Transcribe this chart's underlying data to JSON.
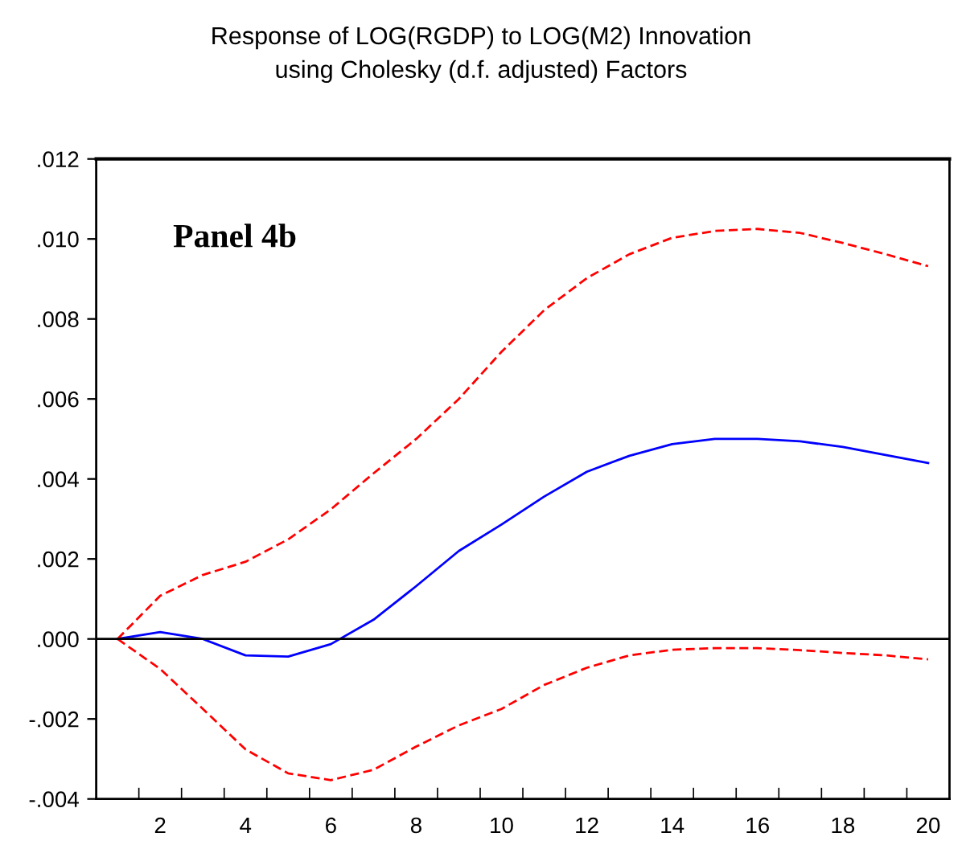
{
  "chart_data": {
    "type": "line",
    "title": "Response of LOG(RGDP) to LOG(M2) Innovation\nusing Cholesky (d.f. adjusted) Factors",
    "annotations": [
      "Panel 4b"
    ],
    "x": [
      1,
      2,
      3,
      4,
      5,
      6,
      7,
      8,
      9,
      10,
      11,
      12,
      13,
      14,
      15,
      16,
      17,
      18,
      19,
      20
    ],
    "series": [
      {
        "color": "#0000ff",
        "line_style": "solid",
        "values": [
          0,
          0.00017,
          0,
          -0.00041,
          -0.00044,
          -0.00013,
          0.00048,
          0.00132,
          0.0022,
          0.00286,
          0.00356,
          0.00418,
          0.00458,
          0.00487,
          0.005,
          0.005,
          0.00494,
          0.0048,
          0.0046,
          0.0044
        ]
      },
      {
        "color": "#ff0000",
        "line_style": "dashed",
        "values": [
          0,
          0.00108,
          0.0016,
          0.00193,
          0.00249,
          0.00324,
          0.00414,
          0.005,
          0.006,
          0.00718,
          0.00822,
          0.00902,
          0.00962,
          0.01003,
          0.0102,
          0.01025,
          0.01015,
          0.0099,
          0.00962,
          0.00932
        ]
      },
      {
        "color": "#ff0000",
        "line_style": "dashed",
        "values": [
          0,
          -0.00075,
          -0.00175,
          -0.00276,
          -0.00336,
          -0.00353,
          -0.00327,
          -0.00269,
          -0.00216,
          -0.00175,
          -0.00115,
          -0.00072,
          -0.00041,
          -0.00027,
          -0.00023,
          -0.00023,
          -0.00028,
          -0.00035,
          -0.00041,
          -0.00051
        ]
      }
    ],
    "ref_lines": [
      {
        "axis": "y",
        "value": 0,
        "color": "#000000"
      }
    ],
    "xlim": [
      0.5,
      20.5
    ],
    "xticks": [
      {
        "value": 1.5,
        "label": null
      },
      {
        "value": 2,
        "label": "2"
      },
      {
        "value": 2.5,
        "label": null
      },
      {
        "value": 3.5,
        "label": null
      },
      {
        "value": 4,
        "label": "4"
      },
      {
        "value": 4.5,
        "label": null
      },
      {
        "value": 5.5,
        "label": null
      },
      {
        "value": 6,
        "label": "6"
      },
      {
        "value": 6.5,
        "label": null
      },
      {
        "value": 7.5,
        "label": null
      },
      {
        "value": 8,
        "label": "8"
      },
      {
        "value": 8.5,
        "label": null
      },
      {
        "value": 9.5,
        "label": null
      },
      {
        "value": 10,
        "label": "10"
      },
      {
        "value": 10.5,
        "label": null
      },
      {
        "value": 11.5,
        "label": null
      },
      {
        "value": 12,
        "label": "12"
      },
      {
        "value": 12.5,
        "label": null
      },
      {
        "value": 13.5,
        "label": null
      },
      {
        "value": 14,
        "label": "14"
      },
      {
        "value": 14.5,
        "label": null
      },
      {
        "value": 15.5,
        "label": null
      },
      {
        "value": 16,
        "label": "16"
      },
      {
        "value": 16.5,
        "label": null
      },
      {
        "value": 17.5,
        "label": null
      },
      {
        "value": 18,
        "label": "18"
      },
      {
        "value": 18.5,
        "label": null
      },
      {
        "value": 19.5,
        "label": null
      },
      {
        "value": 20,
        "label": "20"
      }
    ],
    "ylim": [
      -0.004,
      0.012
    ],
    "yticks": [
      {
        "value": -0.004,
        "label": "-.004"
      },
      {
        "value": -0.002,
        "label": "-.002"
      },
      {
        "value": 0,
        "label": ".000"
      },
      {
        "value": 0.002,
        "label": ".002"
      },
      {
        "value": 0.004,
        "label": ".004"
      },
      {
        "value": 0.006,
        "label": ".006"
      },
      {
        "value": 0.008,
        "label": ".008"
      },
      {
        "value": 0.01,
        "label": ".010"
      },
      {
        "value": 0.012,
        "label": ".012"
      }
    ],
    "marker": "none"
  }
}
